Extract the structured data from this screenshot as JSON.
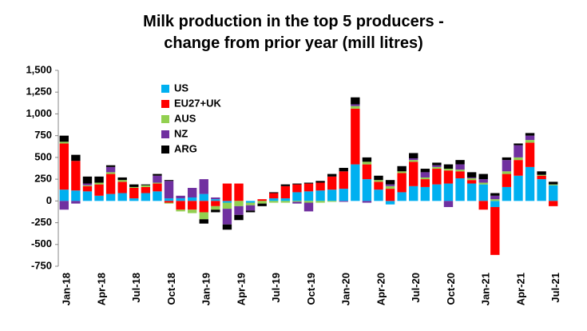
{
  "chart_data": {
    "type": "stacked-bar",
    "title": "Milk production in the top 5 producers - change from prior year (mill litres)",
    "categories": [
      "Jan-18",
      null,
      null,
      "Apr-18",
      null,
      null,
      "Jul-18",
      null,
      null,
      "Oct-18",
      null,
      null,
      "Jan-19",
      null,
      null,
      "Apr-19",
      null,
      null,
      "Jul-19",
      null,
      null,
      "Oct-19",
      null,
      null,
      "Jan-20",
      null,
      null,
      "Apr-20",
      null,
      null,
      "Jul-20",
      null,
      null,
      "Oct-20",
      null,
      null,
      "Jan-21",
      null,
      null,
      "Apr-21",
      null,
      null,
      "Jul-21"
    ],
    "series": [
      {
        "name": "US",
        "color": "#00b0f0",
        "values": [
          130,
          120,
          110,
          60,
          80,
          90,
          30,
          90,
          110,
          30,
          30,
          40,
          80,
          20,
          -20,
          0,
          -20,
          0,
          30,
          30,
          100,
          110,
          120,
          130,
          140,
          420,
          250,
          130,
          -40,
          100,
          170,
          160,
          190,
          200,
          260,
          200,
          190,
          -70,
          160,
          290,
          390,
          250,
          180
        ]
      },
      {
        "name": "EU27+UK",
        "color": "#ff0000",
        "values": [
          530,
          340,
          60,
          130,
          230,
          130,
          120,
          70,
          90,
          -20,
          -100,
          -100,
          -130,
          -60,
          200,
          200,
          0,
          20,
          60,
          140,
          90,
          90,
          90,
          150,
          200,
          640,
          170,
          90,
          140,
          220,
          280,
          90,
          180,
          150,
          80,
          40,
          -100,
          -550,
          150,
          180,
          280,
          40,
          -60
        ]
      },
      {
        "name": "AUS",
        "color": "#92d050",
        "values": [
          20,
          0,
          10,
          20,
          20,
          20,
          10,
          20,
          10,
          -10,
          -20,
          -40,
          -80,
          -40,
          -70,
          -60,
          -30,
          -30,
          -20,
          -20,
          -10,
          -20,
          -20,
          -10,
          0,
          30,
          30,
          20,
          30,
          20,
          20,
          20,
          20,
          20,
          20,
          20,
          20,
          20,
          30,
          30,
          30,
          10,
          10
        ]
      },
      {
        "name": "NZ",
        "color": "#7030a0",
        "values": [
          -100,
          -30,
          20,
          0,
          60,
          0,
          0,
          0,
          80,
          200,
          30,
          110,
          170,
          20,
          -180,
          -100,
          -60,
          0,
          0,
          0,
          -20,
          -100,
          0,
          0,
          -10,
          20,
          -20,
          0,
          20,
          0,
          20,
          60,
          20,
          -70,
          60,
          10,
          40,
          40,
          130,
          140,
          50,
          0,
          0
        ]
      },
      {
        "name": "ARG",
        "color": "#000000",
        "values": [
          70,
          70,
          80,
          70,
          20,
          30,
          30,
          10,
          20,
          10,
          0,
          0,
          -50,
          -30,
          -60,
          -60,
          -20,
          -30,
          10,
          20,
          10,
          10,
          20,
          30,
          40,
          80,
          50,
          50,
          50,
          60,
          60,
          40,
          30,
          50,
          50,
          60,
          60,
          30,
          30,
          20,
          30,
          40,
          30
        ]
      }
    ],
    "ylim": [
      -750,
      1500
    ],
    "yticks": [
      {
        "value": 1500,
        "label": "1,500"
      },
      {
        "value": 1250,
        "label": "1,250"
      },
      {
        "value": 1000,
        "label": "1,000"
      },
      750,
      500,
      250,
      0,
      -250,
      -500,
      -750
    ],
    "grid": false,
    "legend": "upper-left"
  }
}
